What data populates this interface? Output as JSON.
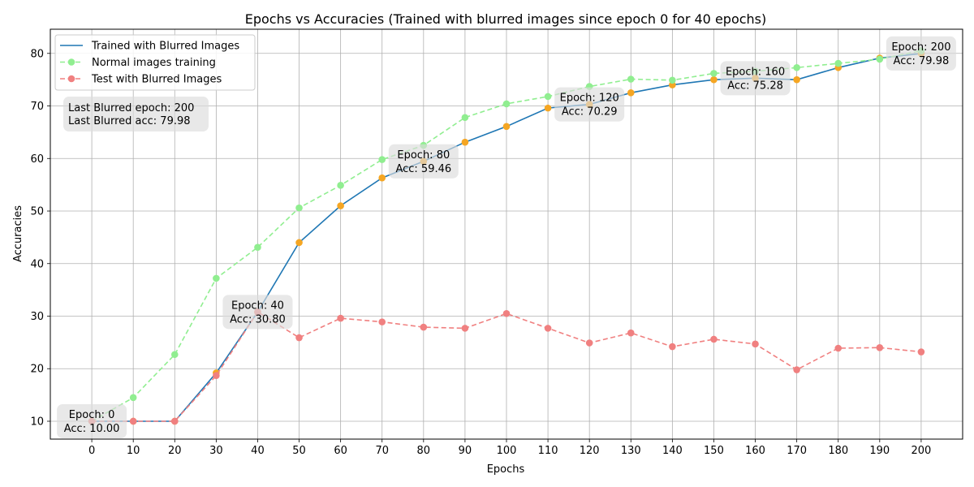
{
  "chart_data": {
    "type": "line",
    "title": "Epochs vs Accuracies (Trained with blurred images since epoch 0 for 40 epochs)",
    "xlabel": "Epochs",
    "ylabel": "Accuracies",
    "x": [
      0,
      10,
      20,
      30,
      40,
      50,
      60,
      70,
      80,
      90,
      100,
      110,
      120,
      130,
      140,
      150,
      160,
      170,
      180,
      190,
      200
    ],
    "xlim": [
      -10,
      210
    ],
    "ylim": [
      6.6,
      84.6
    ],
    "xticks": [
      0,
      10,
      20,
      30,
      40,
      50,
      60,
      70,
      80,
      90,
      100,
      110,
      120,
      130,
      140,
      150,
      160,
      170,
      180,
      190,
      200
    ],
    "yticks": [
      10,
      20,
      30,
      40,
      50,
      60,
      70,
      80
    ],
    "grid": true,
    "legend_position": "upper-left",
    "series": [
      {
        "name": "Trained with Blurred Images",
        "style": "solid",
        "color": "#1f77b4",
        "marker_color": "#f5a623",
        "values": [
          10.0,
          10.0,
          10.0,
          19.2,
          30.8,
          44.0,
          51.0,
          56.3,
          59.46,
          63.1,
          66.1,
          69.6,
          70.29,
          72.5,
          74.0,
          75.0,
          75.28,
          75.0,
          77.3,
          79.1,
          79.98
        ]
      },
      {
        "name": "Normal images training",
        "style": "dashed",
        "color": "#90ee90",
        "marker_color": "#90ee90",
        "values": [
          10.0,
          14.5,
          22.7,
          37.2,
          43.1,
          50.6,
          54.9,
          59.8,
          62.5,
          67.8,
          70.4,
          71.8,
          73.7,
          75.1,
          74.9,
          76.2,
          76.6,
          77.3,
          78.1,
          78.9,
          80.5
        ]
      },
      {
        "name": "Test with Blurred Images",
        "style": "dashed",
        "color": "#f08080",
        "marker_color": "#f08080",
        "values": [
          10.0,
          10.0,
          10.0,
          18.7,
          30.8,
          25.9,
          29.6,
          28.9,
          27.9,
          27.7,
          30.5,
          27.7,
          24.9,
          26.8,
          24.2,
          25.6,
          24.7,
          19.8,
          23.9,
          24.0,
          23.2
        ]
      }
    ],
    "annotations": [
      {
        "x": 0,
        "y": 10.0,
        "lines": [
          "Epoch: 0",
          "Acc: 10.00"
        ]
      },
      {
        "x": 40,
        "y": 30.8,
        "lines": [
          "Epoch: 40",
          "Acc: 30.80"
        ]
      },
      {
        "x": 80,
        "y": 59.46,
        "lines": [
          "Epoch: 80",
          "Acc: 59.46"
        ]
      },
      {
        "x": 120,
        "y": 70.29,
        "lines": [
          "Epoch: 120",
          "Acc: 70.29"
        ]
      },
      {
        "x": 160,
        "y": 75.28,
        "lines": [
          "Epoch: 160",
          "Acc: 75.28"
        ]
      },
      {
        "x": 200,
        "y": 79.98,
        "lines": [
          "Epoch: 200",
          "Acc: 79.98"
        ]
      }
    ],
    "summary_box": [
      "Last Blurred epoch: 200",
      "Last Blurred acc: 79.98"
    ]
  }
}
